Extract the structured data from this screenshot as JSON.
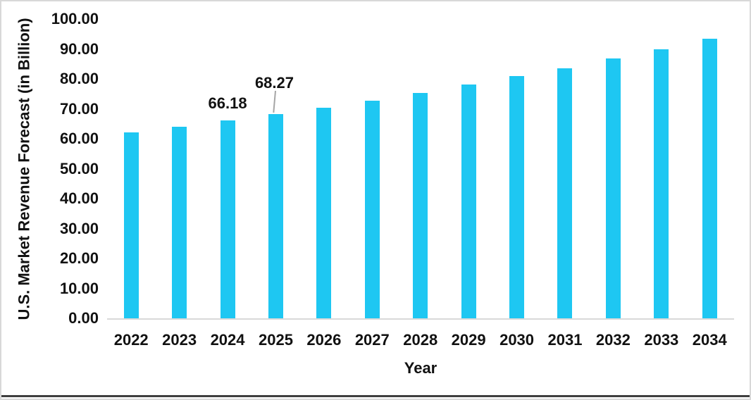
{
  "chart_data": {
    "type": "bar",
    "title": "",
    "xlabel": "Year",
    "ylabel": "U.S. Market Revenue Forecast (in Billion)",
    "categories": [
      "2022",
      "2023",
      "2024",
      "2025",
      "2026",
      "2027",
      "2028",
      "2029",
      "2030",
      "2031",
      "2032",
      "2033",
      "2034"
    ],
    "values": [
      62.2,
      64.1,
      66.18,
      68.27,
      70.45,
      72.8,
      75.4,
      78.1,
      80.85,
      83.6,
      86.75,
      90.0,
      93.45
    ],
    "ylim": [
      0,
      100
    ],
    "y_tick_step": 10,
    "y_tick_labels": [
      "0.00",
      "10.00",
      "20.00",
      "30.00",
      "40.00",
      "50.00",
      "60.00",
      "70.00",
      "80.00",
      "90.00",
      "100.00"
    ],
    "grid": false,
    "legend": "none",
    "annotations": [
      {
        "category": "2024",
        "text": "66.18",
        "leader_line": false
      },
      {
        "category": "2025",
        "text": "68.27",
        "leader_line": true
      }
    ],
    "colors": {
      "bar": "#1EC7F2",
      "axis_line": "#D9D9D9",
      "leader_line": "#A6A6A6",
      "text": "#111111",
      "frame": "#D8D8D8",
      "frame_bottom": "#3F3F3F",
      "background": "#FFFFFF"
    }
  }
}
